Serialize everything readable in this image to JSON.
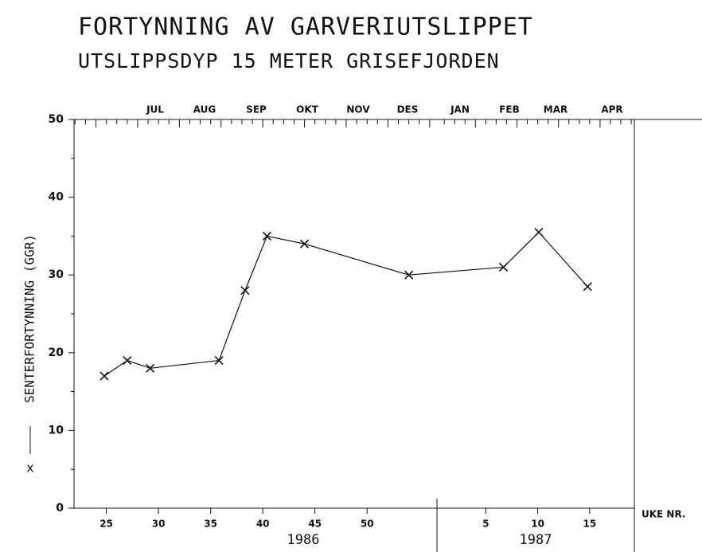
{
  "chart_data": {
    "type": "line",
    "title": "FORTYNNING AV GARVERIUTSLIPPET",
    "subtitle": "UTSLIPPSDYP 15 METER GRISEFJORDEN",
    "ylabel": "SENTERFORTYNNING (GGR)",
    "marker_label": "x",
    "xlabel": "UKE NR.",
    "ylim": [
      0,
      50
    ],
    "yticks": [
      0,
      10,
      20,
      30,
      40,
      50
    ],
    "months": [
      "JUL",
      "AUG",
      "SEP",
      "OKT",
      "NOV",
      "DES",
      "JAN",
      "FEB",
      "MAR",
      "APR"
    ],
    "segments": [
      {
        "year": "1986",
        "xlim": [
          21.9,
          56.7
        ],
        "xticks": [
          25,
          30,
          35,
          40,
          45,
          50
        ],
        "x": [
          24.8,
          27,
          29.2,
          35.8,
          38.3,
          40.4,
          44,
          54
        ],
        "values": [
          17,
          19,
          18,
          19,
          28,
          35,
          34,
          30
        ]
      },
      {
        "year": "1987",
        "xlim": [
          0.3,
          19.3
        ],
        "xticks": [
          5,
          10,
          15
        ],
        "x": [
          6.7,
          10.1,
          14.8
        ],
        "values": [
          31,
          35.5,
          28.5
        ]
      }
    ]
  }
}
